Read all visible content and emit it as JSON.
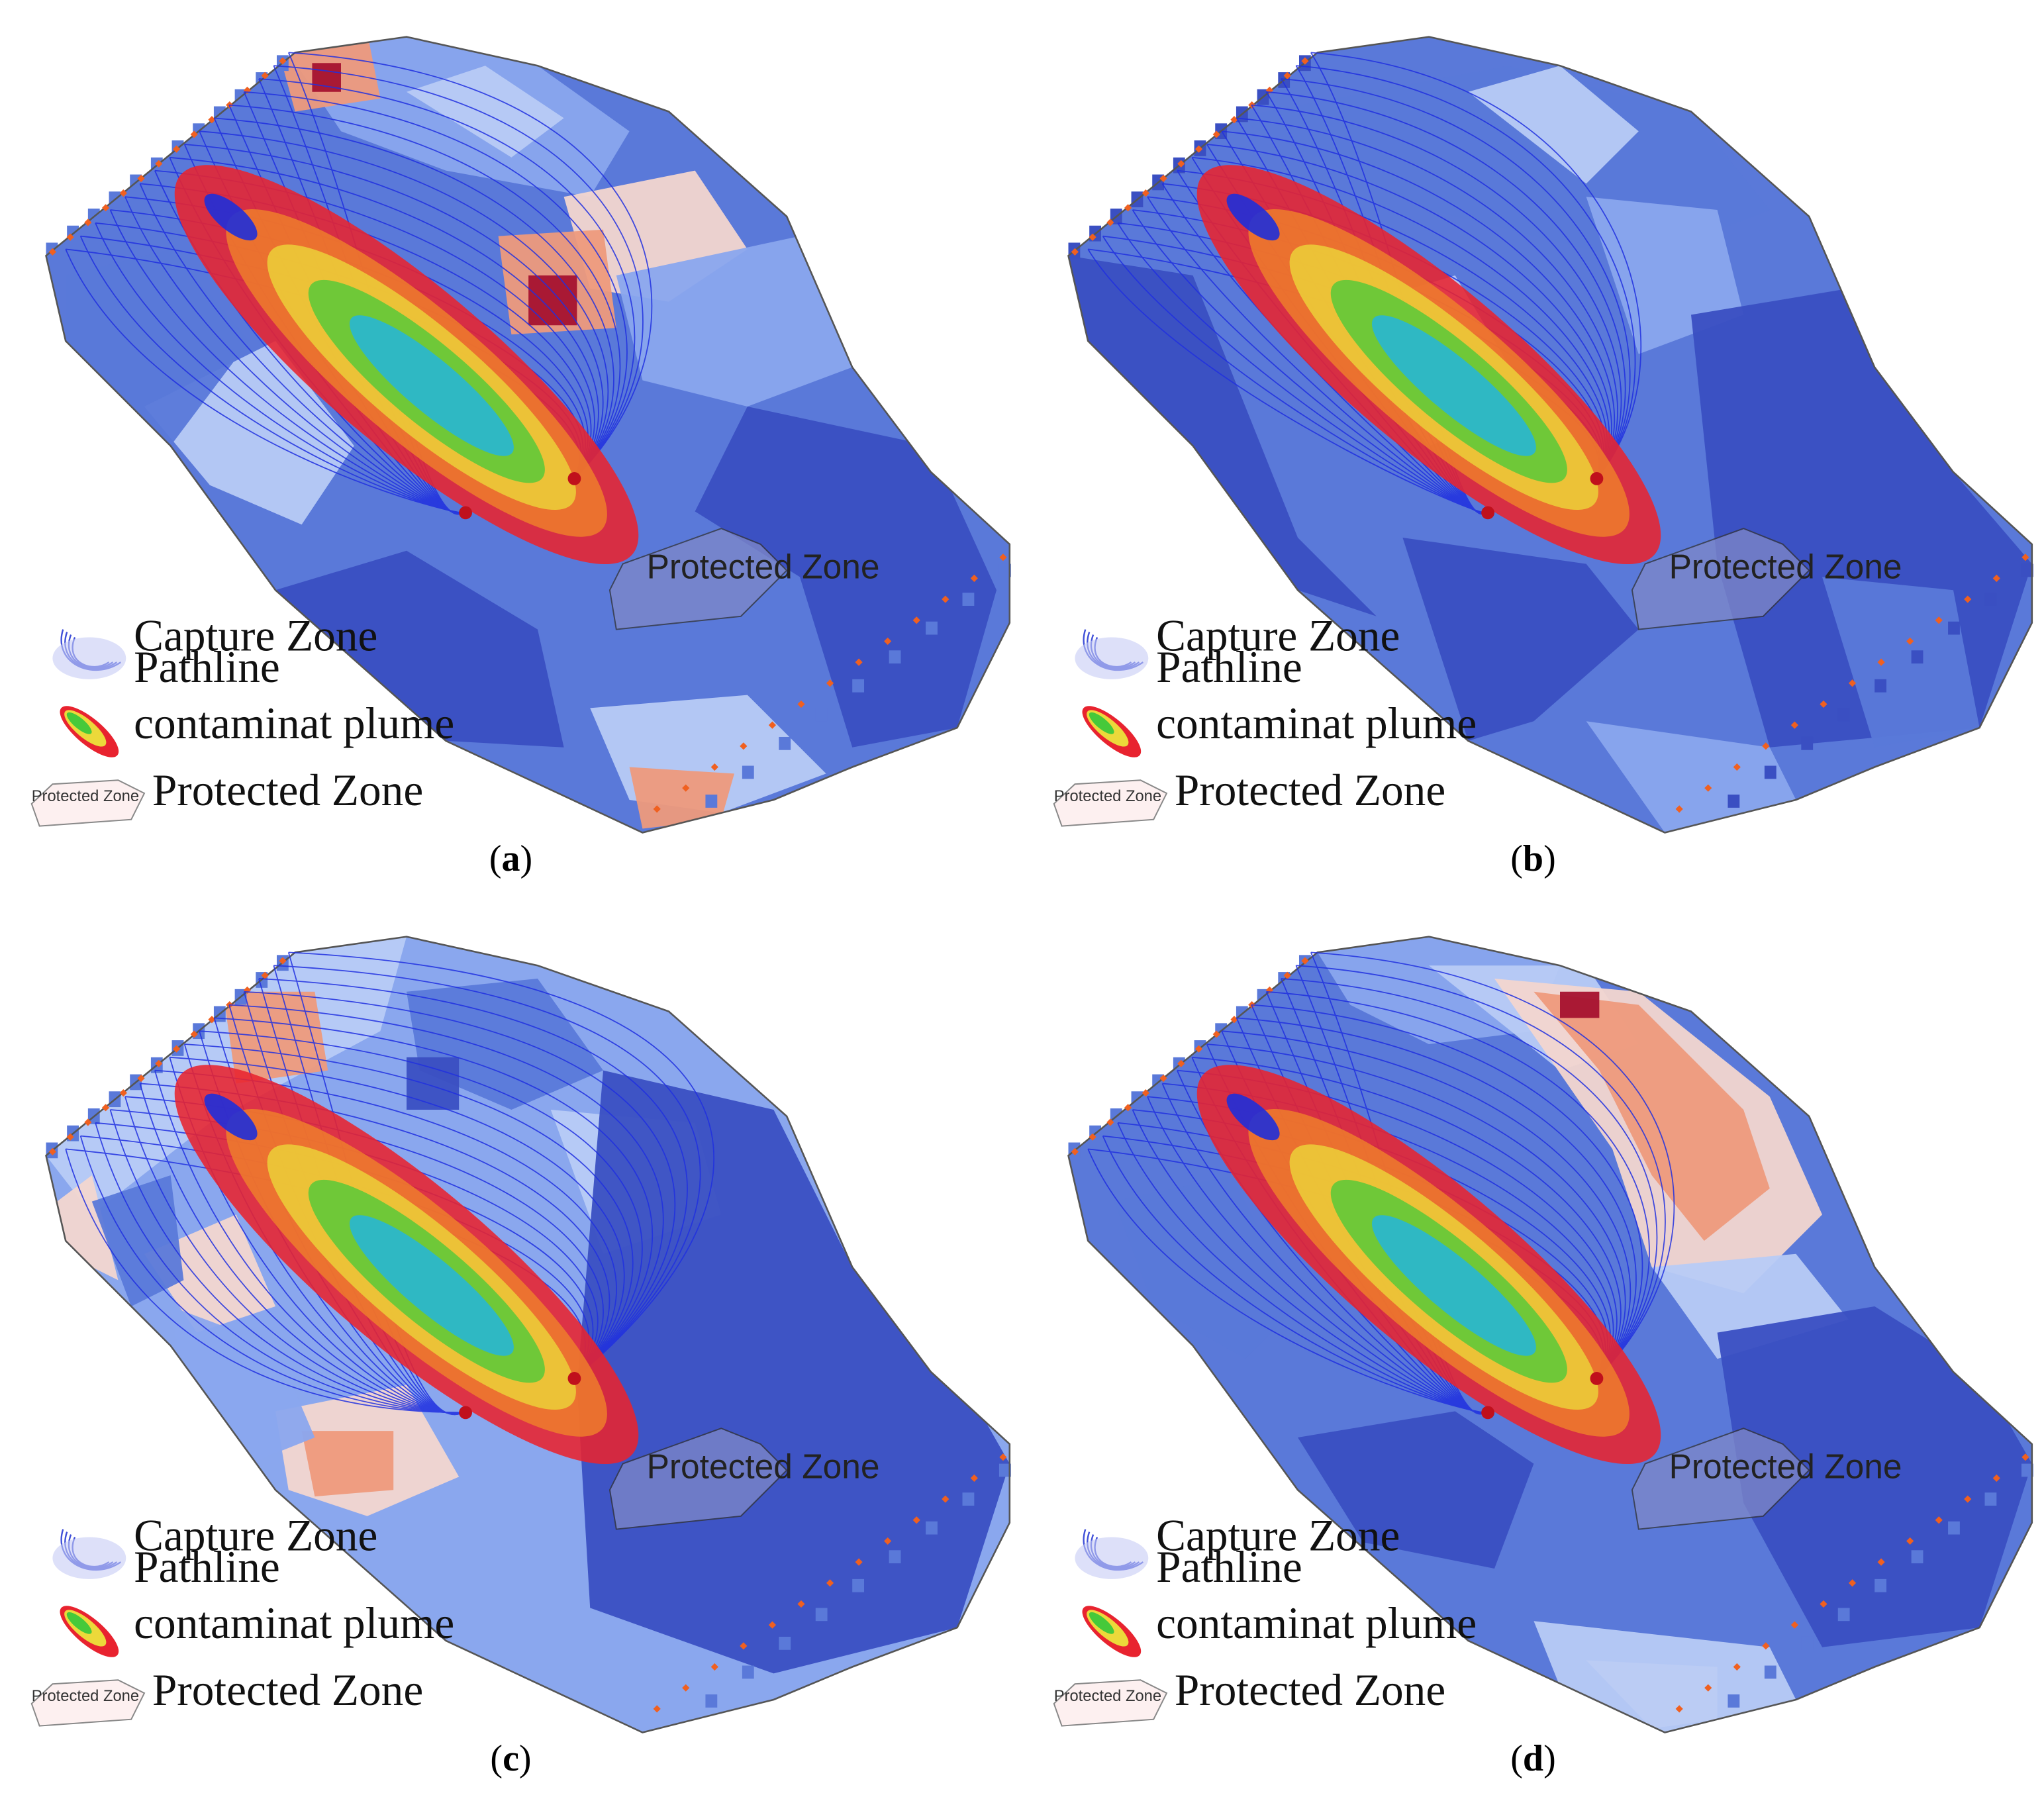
{
  "panels": [
    {
      "id": "a",
      "caption_letter": "a",
      "variant": "a"
    },
    {
      "id": "b",
      "caption_letter": "b",
      "variant": "b"
    },
    {
      "id": "c",
      "caption_letter": "c",
      "variant": "c"
    },
    {
      "id": "d",
      "caption_letter": "d",
      "variant": "d"
    }
  ],
  "labels": {
    "protected_zone": "Protected Zone",
    "legend_capture_line1": "Capture Zone",
    "legend_capture_line2": "Pathline",
    "legend_plume": "contaminat plume",
    "legend_protected": "Protected Zone",
    "legend_protected_icon_text": "Protected Zone"
  },
  "colors": {
    "deep_blue": "#3a4fc2",
    "mid_blue": "#5a79d9",
    "light_blue": "#8aa7ee",
    "pale_blue": "#b8cbf5",
    "pale_pink": "#f3d6cf",
    "salmon": "#ee9a7c",
    "dark_red": "#a5122f",
    "plume_red": "#e8232f",
    "plume_orange": "#f0822a",
    "plume_yellow": "#ecd93a",
    "plume_green": "#46c93a",
    "plume_cyan": "#1fb4e6",
    "plume_blue": "#1f2fd9",
    "pathline": "#2030e0",
    "boundary_marker": "#f06020"
  }
}
